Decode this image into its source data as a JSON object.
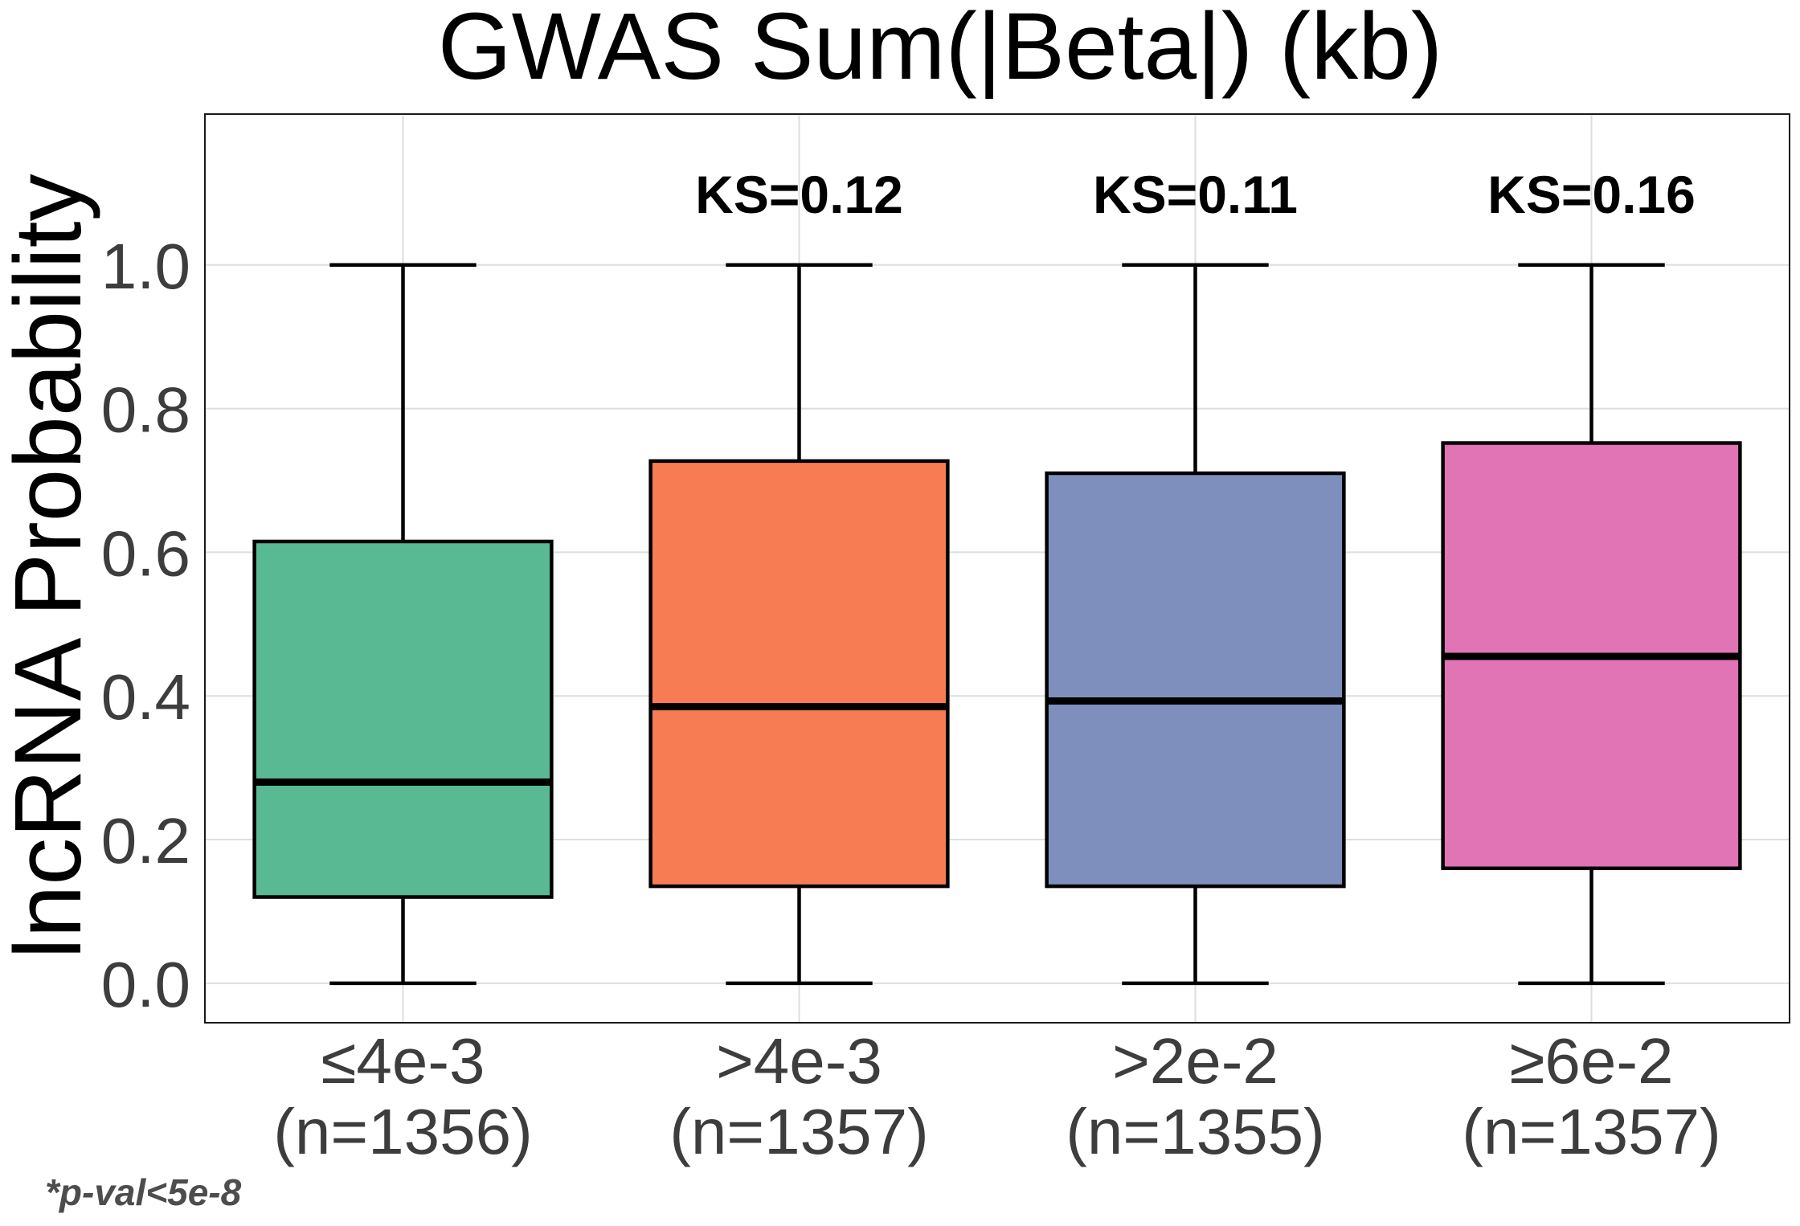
{
  "chart_data": {
    "type": "boxplot",
    "title": "GWAS Sum(|Beta|) (kb)",
    "ylabel": "lncRNA Probability",
    "xlabel": "",
    "ylim": [
      -0.055,
      1.21
    ],
    "yticks": [
      "0.0",
      "0.2",
      "0.4",
      "0.6",
      "0.8",
      "1.0"
    ],
    "grid": true,
    "legend": "none",
    "caption": "*p-val<5e-8",
    "categories": [
      {
        "label": "≤4e-3",
        "n_label": "(n=1356)"
      },
      {
        "label": ">4e-3",
        "n_label": "(n=1357)"
      },
      {
        "label": ">2e-2",
        "n_label": "(n=1355)"
      },
      {
        "label": "≥6e-2",
        "n_label": "(n=1357)"
      }
    ],
    "boxes": [
      {
        "whisker_low": 0.0,
        "q1": 0.12,
        "median": 0.28,
        "q3": 0.615,
        "whisker_high": 1.0,
        "color": "#58b993",
        "annotation": ""
      },
      {
        "whisker_low": 0.0,
        "q1": 0.135,
        "median": 0.385,
        "q3": 0.727,
        "whisker_high": 1.0,
        "color": "#f77b53",
        "annotation": "KS=0.12"
      },
      {
        "whisker_low": 0.0,
        "q1": 0.135,
        "median": 0.393,
        "q3": 0.71,
        "whisker_high": 1.0,
        "color": "#7e8fbe",
        "annotation": "KS=0.11"
      },
      {
        "whisker_low": 0.0,
        "q1": 0.16,
        "median": 0.455,
        "q3": 0.752,
        "whisker_high": 1.0,
        "color": "#e074b4",
        "annotation": "KS=0.16"
      }
    ]
  }
}
